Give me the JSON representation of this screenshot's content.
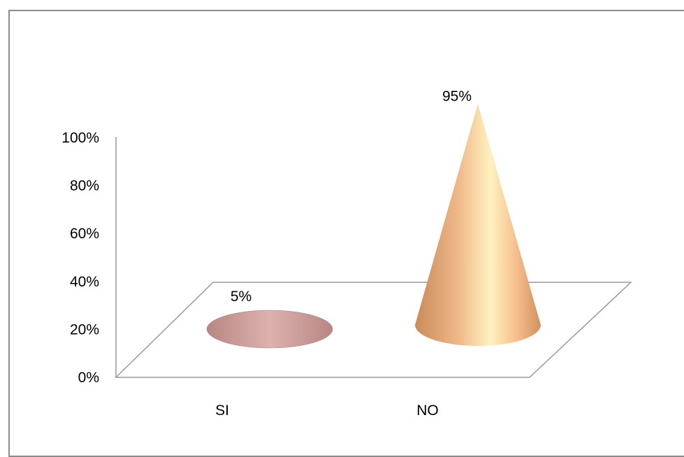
{
  "chart_data": {
    "type": "bar",
    "shape": "cone",
    "categories": [
      "SI",
      "NO"
    ],
    "values": [
      5,
      95
    ],
    "data_labels": [
      "5%",
      "95%"
    ],
    "title": "",
    "xlabel": "",
    "ylabel": "",
    "ylim": [
      0,
      100
    ],
    "yticks": [
      "0%",
      "20%",
      "40%",
      "60%",
      "80%",
      "100%"
    ],
    "grid": false,
    "legend": "none",
    "colors": {
      "SI": "#c99a98",
      "NO": "#f2b98a"
    }
  }
}
